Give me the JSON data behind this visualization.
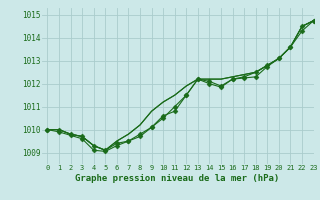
{
  "bg_color": "#cce8e8",
  "grid_color": "#aacccc",
  "line_color": "#1a6b1a",
  "marker_color": "#1a6b1a",
  "xlabel": "Graphe pression niveau de la mer (hPa)",
  "xlabel_color": "#1a6b1a",
  "ylabel_color": "#1a6b1a",
  "title": "",
  "xlim": [
    -0.5,
    23
  ],
  "ylim": [
    1008.5,
    1015.3
  ],
  "yticks": [
    1009,
    1010,
    1011,
    1012,
    1013,
    1014,
    1015
  ],
  "xticks": [
    0,
    1,
    2,
    3,
    4,
    5,
    6,
    7,
    8,
    9,
    10,
    11,
    12,
    13,
    14,
    15,
    16,
    17,
    18,
    19,
    20,
    21,
    22,
    23
  ],
  "series": [
    [
      1010.0,
      1010.0,
      1009.8,
      1009.7,
      1009.3,
      1009.1,
      1009.4,
      1009.5,
      1009.7,
      1010.1,
      1010.5,
      1011.0,
      1011.5,
      1012.2,
      1012.1,
      1011.9,
      1012.2,
      1012.3,
      1012.5,
      1012.8,
      1013.1,
      1013.6,
      1014.5,
      1014.75
    ],
    [
      1010.0,
      1010.0,
      1009.8,
      1009.7,
      1009.3,
      1009.1,
      1009.5,
      1009.8,
      1010.2,
      1010.8,
      1011.2,
      1011.5,
      1011.9,
      1012.2,
      1012.2,
      1012.2,
      1012.3,
      1012.4,
      1012.5,
      1012.8,
      1013.1,
      1013.6,
      1014.5,
      1014.75
    ],
    [
      1010.0,
      1010.0,
      1009.8,
      1009.7,
      1009.3,
      1009.1,
      1009.5,
      1009.8,
      1010.2,
      1010.8,
      1011.2,
      1011.5,
      1011.9,
      1012.2,
      1012.2,
      1012.2,
      1012.3,
      1012.4,
      1012.5,
      1012.8,
      1013.1,
      1013.6,
      1014.5,
      1014.75
    ],
    [
      1010.0,
      1009.9,
      1009.75,
      1009.6,
      1009.1,
      1009.05,
      1009.3,
      1009.5,
      1009.8,
      1010.1,
      1010.6,
      1010.8,
      1011.5,
      1012.2,
      1012.0,
      1011.85,
      1012.2,
      1012.25,
      1012.3,
      1012.75,
      1013.1,
      1013.6,
      1014.3,
      1014.75
    ]
  ],
  "series_with_markers": [
    0,
    3
  ],
  "marker_size": 2.5,
  "linewidth": 0.8
}
